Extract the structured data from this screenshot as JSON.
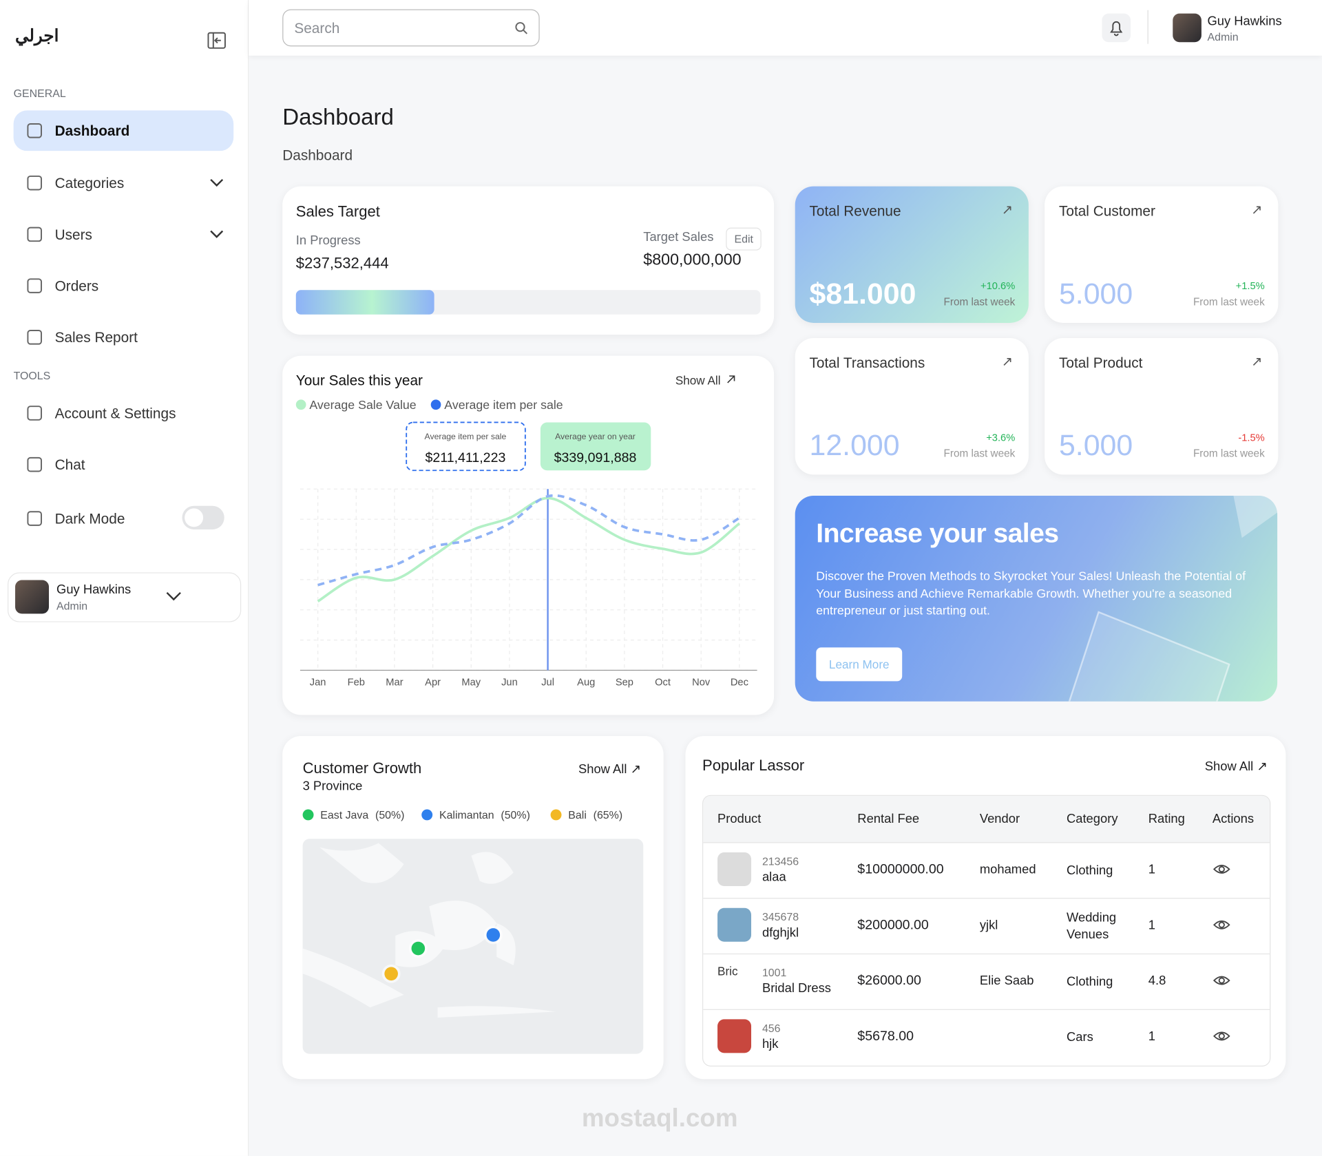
{
  "sidebar": {
    "logo": "اجرلي",
    "general_label": "GENERAL",
    "nav": [
      "Dashboard",
      "Categories",
      "Users",
      "Orders",
      "Sales Report"
    ],
    "tools_label": "TOOLS",
    "tools": [
      "Account & Settings",
      "Chat",
      "Dark Mode"
    ],
    "user": {
      "name": "Guy Hawkins",
      "role": "Admin"
    }
  },
  "header": {
    "search_placeholder": "Search",
    "user": {
      "name": "Guy Hawkins",
      "role": "Admin"
    }
  },
  "page": {
    "title": "Dashboard",
    "breadcrumb": "Dashboard"
  },
  "sales_target": {
    "title": "Sales Target",
    "progress_label": "In Progress",
    "progress_value": "$237,532,444",
    "target_label": "Target Sales",
    "edit": "Edit",
    "target_value": "$800,000,000"
  },
  "stats": [
    {
      "title": "Total Revenue",
      "value": "$81.000",
      "change": "+10.6%",
      "note": "From last week"
    },
    {
      "title": "Total Customer",
      "value": "5.000",
      "change": "+1.5%",
      "note": "From last week"
    },
    {
      "title": "Total Transactions",
      "value": "12.000",
      "change": "+3.6%",
      "note": "From last week"
    },
    {
      "title": "Total Product",
      "value": "5.000",
      "change": "-1.5%",
      "note": "From last week"
    }
  ],
  "sales_chart": {
    "title": "Your Sales this year",
    "show_all": "Show All",
    "tooltips": [
      {
        "label": "Average item per sale",
        "value": "$211,411,223"
      },
      {
        "label": "Average year on year",
        "value": "$339,091,888"
      }
    ],
    "chart_data": {
      "type": "line",
      "categories": [
        "Jan",
        "Feb",
        "Mar",
        "Apr",
        "May",
        "Jun",
        "Jul",
        "Aug",
        "Sep",
        "Oct",
        "Nov",
        "Dec"
      ],
      "ylim": [
        0,
        100
      ],
      "series": [
        {
          "name": "Average Sale Value",
          "color": "#b3f0c6",
          "values": [
            38,
            51,
            50,
            63,
            77,
            84,
            95,
            84,
            72,
            67,
            65,
            81
          ]
        },
        {
          "name": "Average item per sale",
          "color": "#2f6fed",
          "line_color": "#8fb2f5",
          "values": [
            47,
            53,
            58,
            68,
            72,
            81,
            96,
            91,
            79,
            75,
            72,
            84
          ]
        }
      ]
    }
  },
  "promo": {
    "title": "Increase your sales",
    "text": "Discover the Proven Methods to Skyrocket Your Sales! Unleash the Potential of Your Business and Achieve Remarkable Growth. Whether you're a seasoned entrepreneur or just starting out.",
    "button": "Learn More"
  },
  "customer_growth": {
    "title": "Customer Growth",
    "subtitle": "3 Province",
    "show_all": "Show All",
    "legend": [
      {
        "name": "East Java",
        "share": "(50%)",
        "color": "#22c55e"
      },
      {
        "name": "Kalimantan",
        "share": "(50%)",
        "color": "#2f80ed"
      },
      {
        "name": "Bali",
        "share": "(65%)",
        "color": "#f2b824"
      }
    ]
  },
  "table": {
    "title": "Popular Lassor",
    "show_all": "Show All",
    "headers": [
      "Product",
      "Rental Fee",
      "Vendor",
      "Category",
      "Rating",
      "Actions"
    ],
    "rows": [
      {
        "id": "213456",
        "name": "alaa",
        "fee": "$10000000.00",
        "vendor": "mohamed",
        "category": "Clothing",
        "rating": "1"
      },
      {
        "id": "345678",
        "name": "dfghjkl",
        "fee": "$200000.00",
        "vendor": "yjkl",
        "category": "Wedding Venues",
        "rating": "1"
      },
      {
        "id": "1001",
        "name": "Bridal Dress",
        "fee": "$26000.00",
        "vendor": "Elie Saab",
        "category": "Clothing",
        "rating": "4.8",
        "image_alt": "Bric"
      },
      {
        "id": "456",
        "name": "hjk",
        "fee": "$5678.00",
        "vendor": "",
        "category": "Cars",
        "rating": "1"
      }
    ]
  },
  "watermark": "mostaql.com"
}
